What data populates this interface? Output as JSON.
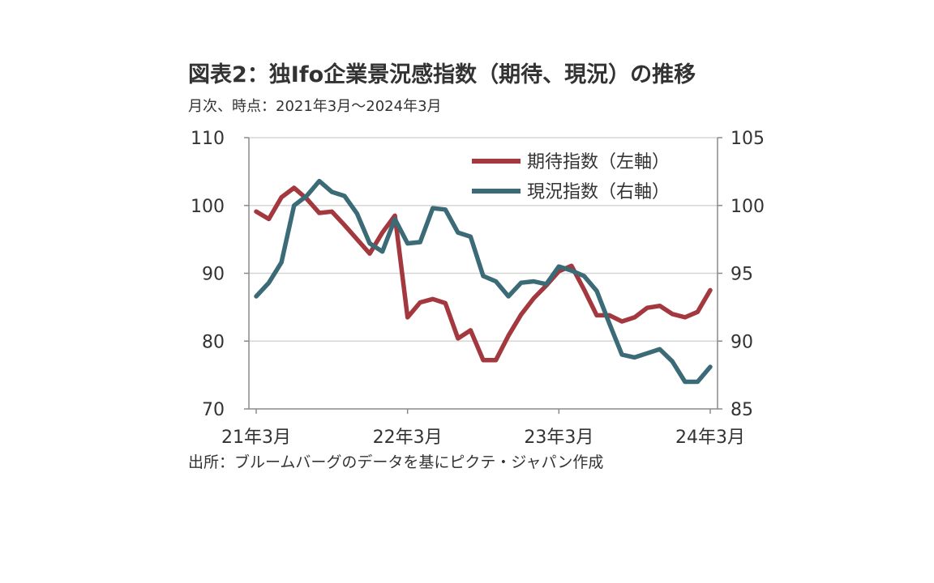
{
  "title": "図表2：独Ifo企業景況感指数（期待、現況）の推移",
  "subtitle": "月次、時点：2021年3月～2024年3月",
  "source": "出所：ブルームバーグのデータを基にピクテ・ジャパン作成",
  "chart_data": {
    "type": "line",
    "x": [
      "21/3",
      "21/4",
      "21/5",
      "21/6",
      "21/7",
      "21/8",
      "21/9",
      "21/10",
      "21/11",
      "21/12",
      "22/1",
      "22/2",
      "22/3",
      "22/4",
      "22/5",
      "22/6",
      "22/7",
      "22/8",
      "22/9",
      "22/10",
      "22/11",
      "22/12",
      "23/1",
      "23/2",
      "23/3",
      "23/4",
      "23/5",
      "23/6",
      "23/7",
      "23/8",
      "23/9",
      "23/10",
      "23/11",
      "23/12",
      "24/1",
      "24/2",
      "24/3"
    ],
    "x_tick_labels": [
      "21年3月",
      "22年3月",
      "23年3月",
      "24年3月"
    ],
    "x_tick_indices": [
      0,
      12,
      24,
      36
    ],
    "y_left": {
      "ticks": [
        70,
        80,
        90,
        100,
        110
      ],
      "ylim": [
        70,
        110
      ]
    },
    "y_right": {
      "ticks": [
        85,
        90,
        95,
        100,
        105
      ],
      "ylim": [
        85,
        105
      ]
    },
    "grid": true,
    "legend_position": "top-right",
    "series": [
      {
        "name": "期待指数（左軸）",
        "axis": "left",
        "color": "#a3383f",
        "values": [
          99.1,
          98.0,
          101.2,
          102.6,
          101.0,
          98.9,
          99.1,
          97.1,
          95.0,
          92.9,
          96.0,
          98.5,
          83.5,
          85.7,
          86.2,
          85.6,
          80.4,
          81.6,
          77.2,
          77.2,
          80.8,
          83.9,
          86.3,
          88.2,
          90.3,
          91.1,
          87.6,
          83.8,
          83.8,
          82.9,
          83.5,
          84.9,
          85.2,
          84.0,
          83.5,
          84.3,
          87.5
        ]
      },
      {
        "name": "現況指数（右軸）",
        "axis": "right",
        "color": "#3a6b76",
        "values": [
          93.3,
          94.3,
          95.8,
          100.0,
          100.7,
          101.8,
          101.0,
          100.7,
          99.4,
          97.2,
          96.6,
          99.0,
          97.2,
          97.3,
          99.8,
          99.7,
          98.0,
          97.7,
          94.8,
          94.4,
          93.3,
          94.3,
          94.4,
          94.2,
          95.5,
          95.2,
          94.8,
          93.7,
          91.3,
          89.0,
          88.8,
          89.1,
          89.4,
          88.5,
          87.0,
          87.0,
          88.1
        ]
      }
    ]
  }
}
